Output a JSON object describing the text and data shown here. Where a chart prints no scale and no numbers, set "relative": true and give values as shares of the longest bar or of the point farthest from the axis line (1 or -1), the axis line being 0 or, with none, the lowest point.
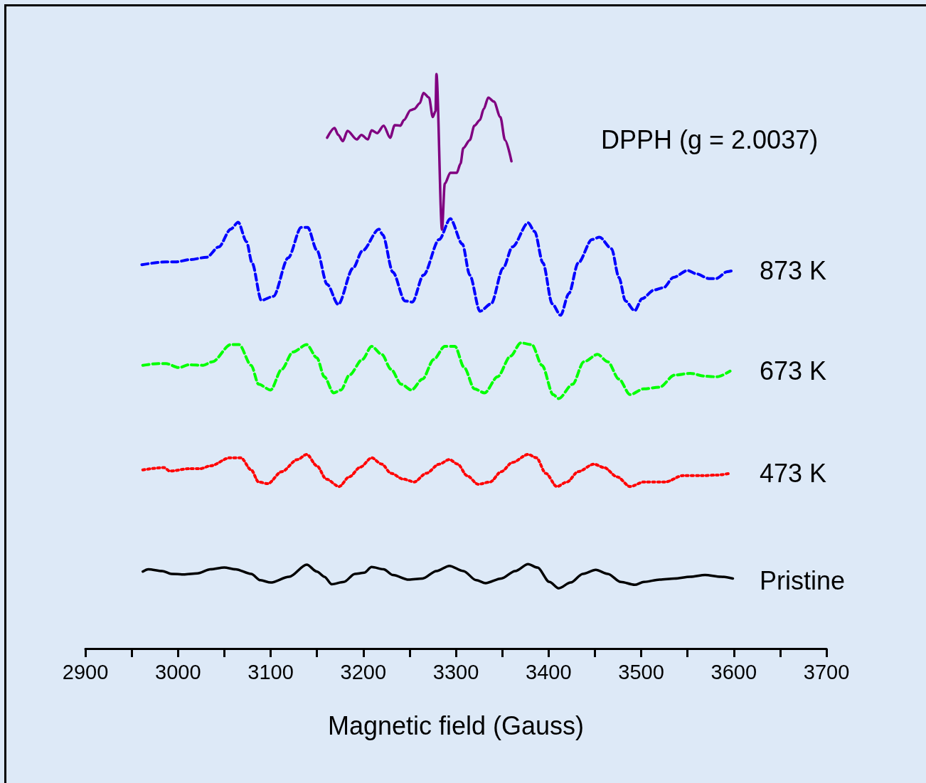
{
  "chart_data": {
    "type": "line",
    "relative": true,
    "xlabel": "Magnetic field (Gauss)",
    "xlim": [
      2900,
      3700
    ],
    "xticks": [
      2900,
      {
        "value": 2950,
        "label": null
      },
      3000,
      {
        "value": 3050,
        "label": null
      },
      3100,
      {
        "value": 3150,
        "label": null
      },
      3200,
      {
        "value": 3250,
        "label": null
      },
      3300,
      {
        "value": 3350,
        "label": null
      },
      3400,
      {
        "value": 3450,
        "label": null
      },
      3500,
      {
        "value": 3550,
        "label": null
      },
      3600,
      {
        "value": 3650,
        "label": null
      },
      3700
    ],
    "grid": false,
    "legend": false,
    "marker": "none",
    "tick_labels": "x",
    "series": [
      {
        "name": "DPPH (g = 2.0037)",
        "color": "#800080",
        "line_style": "solid",
        "x": [
          3161,
          3169,
          3173,
          3178,
          3183,
          3193,
          3198,
          3205,
          3209,
          3215,
          3222,
          3229,
          3234,
          3240,
          3244,
          3251,
          3255,
          3261,
          3265,
          3271,
          3275,
          3278,
          3279,
          3285,
          3288,
          3294,
          3301,
          3305,
          3308,
          3315,
          3320,
          3326,
          3330,
          3335,
          3341,
          3348,
          3353,
          3360
        ],
        "values": [
          0.889,
          0.906,
          0.894,
          0.883,
          0.901,
          0.886,
          0.894,
          0.886,
          0.902,
          0.897,
          0.91,
          0.889,
          0.911,
          0.91,
          0.92,
          0.937,
          0.939,
          0.949,
          0.967,
          0.959,
          0.925,
          0.935,
          1.0,
          0.729,
          0.809,
          0.828,
          0.828,
          0.844,
          0.871,
          0.885,
          0.91,
          0.92,
          0.939,
          0.959,
          0.952,
          0.925,
          0.885,
          0.848
        ]
      },
      {
        "name": "873 K",
        "color": "#0000ff",
        "line_style": "dashed",
        "x": [
          2961,
          2987,
          2998,
          3013,
          3031,
          3044,
          3057,
          3065,
          3074,
          3080,
          3090,
          3103,
          3119,
          3133,
          3140,
          3150,
          3161,
          3173,
          3189,
          3199,
          3217,
          3221,
          3232,
          3245,
          3253,
          3265,
          3282,
          3294,
          3307,
          3315,
          3326,
          3338,
          3351,
          3361,
          3378,
          3385,
          3394,
          3404,
          3413,
          3422,
          3432,
          3447,
          3455,
          3468,
          3476,
          3483,
          3493,
          3501,
          3514,
          3524,
          3535,
          3550,
          3560,
          3573,
          3581,
          3593,
          3599
        ],
        "values": [
          0.668,
          0.673,
          0.673,
          0.677,
          0.681,
          0.699,
          0.73,
          0.742,
          0.708,
          0.671,
          0.606,
          0.613,
          0.68,
          0.733,
          0.733,
          0.693,
          0.634,
          0.599,
          0.662,
          0.692,
          0.73,
          0.72,
          0.655,
          0.605,
          0.603,
          0.65,
          0.712,
          0.748,
          0.704,
          0.65,
          0.587,
          0.6,
          0.662,
          0.699,
          0.741,
          0.726,
          0.671,
          0.6,
          0.58,
          0.618,
          0.671,
          0.712,
          0.716,
          0.696,
          0.646,
          0.605,
          0.588,
          0.609,
          0.624,
          0.628,
          0.646,
          0.658,
          0.652,
          0.644,
          0.644,
          0.656,
          0.658
        ]
      },
      {
        "name": "673 K",
        "color": "#00ff00",
        "line_style": "dashed",
        "x": [
          2962,
          2979,
          2987,
          3001,
          3012,
          3027,
          3037,
          3057,
          3066,
          3079,
          3087,
          3100,
          3112,
          3124,
          3139,
          3150,
          3158,
          3168,
          3176,
          3185,
          3199,
          3209,
          3220,
          3230,
          3241,
          3252,
          3264,
          3276,
          3288,
          3299,
          3309,
          3320,
          3331,
          3345,
          3359,
          3370,
          3382,
          3393,
          3405,
          3411,
          3426,
          3438,
          3453,
          3464,
          3476,
          3488,
          3503,
          3520,
          3536,
          3553,
          3569,
          3582,
          3596
        ],
        "values": [
          0.493,
          0.496,
          0.496,
          0.489,
          0.494,
          0.493,
          0.499,
          0.529,
          0.529,
          0.493,
          0.46,
          0.45,
          0.486,
          0.516,
          0.529,
          0.506,
          0.473,
          0.445,
          0.45,
          0.476,
          0.503,
          0.526,
          0.512,
          0.486,
          0.46,
          0.45,
          0.469,
          0.503,
          0.526,
          0.526,
          0.489,
          0.452,
          0.445,
          0.473,
          0.509,
          0.532,
          0.529,
          0.493,
          0.442,
          0.435,
          0.46,
          0.499,
          0.512,
          0.499,
          0.469,
          0.442,
          0.452,
          0.455,
          0.476,
          0.479,
          0.474,
          0.473,
          0.483
        ]
      },
      {
        "name": "473 K",
        "color": "#ff0000",
        "line_style": "dotted",
        "x": [
          2962,
          2985,
          2991,
          3012,
          3024,
          3035,
          3056,
          3068,
          3079,
          3087,
          3097,
          3112,
          3129,
          3139,
          3150,
          3160,
          3174,
          3185,
          3197,
          3209,
          3220,
          3230,
          3243,
          3255,
          3268,
          3282,
          3293,
          3302,
          3312,
          3324,
          3337,
          3349,
          3361,
          3378,
          3387,
          3397,
          3409,
          3420,
          3432,
          3449,
          3460,
          3474,
          3488,
          3503,
          3526,
          3545,
          3566,
          3582,
          3596
        ],
        "values": [
          0.311,
          0.315,
          0.309,
          0.313,
          0.313,
          0.318,
          0.332,
          0.332,
          0.311,
          0.29,
          0.287,
          0.308,
          0.329,
          0.338,
          0.318,
          0.295,
          0.282,
          0.299,
          0.316,
          0.332,
          0.321,
          0.305,
          0.295,
          0.29,
          0.305,
          0.321,
          0.329,
          0.321,
          0.301,
          0.286,
          0.29,
          0.308,
          0.324,
          0.338,
          0.332,
          0.305,
          0.282,
          0.29,
          0.308,
          0.321,
          0.315,
          0.299,
          0.282,
          0.29,
          0.29,
          0.301,
          0.301,
          0.302,
          0.305
        ]
      },
      {
        "name": "Pristine",
        "color": "#000000",
        "line_style": "solid",
        "x": [
          2962,
          2968,
          2983,
          2993,
          3006,
          3021,
          3035,
          3050,
          3062,
          3079,
          3089,
          3100,
          3120,
          3139,
          3150,
          3158,
          3166,
          3179,
          3191,
          3201,
          3209,
          3222,
          3232,
          3249,
          3264,
          3279,
          3293,
          3308,
          3322,
          3332,
          3349,
          3364,
          3378,
          3388,
          3401,
          3411,
          3424,
          3437,
          3451,
          3464,
          3478,
          3493,
          3503,
          3520,
          3536,
          3553,
          3569,
          3586,
          3599
        ],
        "values": [
          0.134,
          0.138,
          0.135,
          0.13,
          0.129,
          0.131,
          0.138,
          0.141,
          0.138,
          0.13,
          0.119,
          0.115,
          0.125,
          0.146,
          0.134,
          0.125,
          0.112,
          0.116,
          0.13,
          0.132,
          0.142,
          0.138,
          0.128,
          0.12,
          0.122,
          0.135,
          0.144,
          0.135,
          0.119,
          0.114,
          0.122,
          0.135,
          0.147,
          0.141,
          0.116,
          0.105,
          0.115,
          0.13,
          0.137,
          0.13,
          0.116,
          0.111,
          0.116,
          0.12,
          0.122,
          0.125,
          0.128,
          0.125,
          0.122
        ]
      }
    ]
  }
}
